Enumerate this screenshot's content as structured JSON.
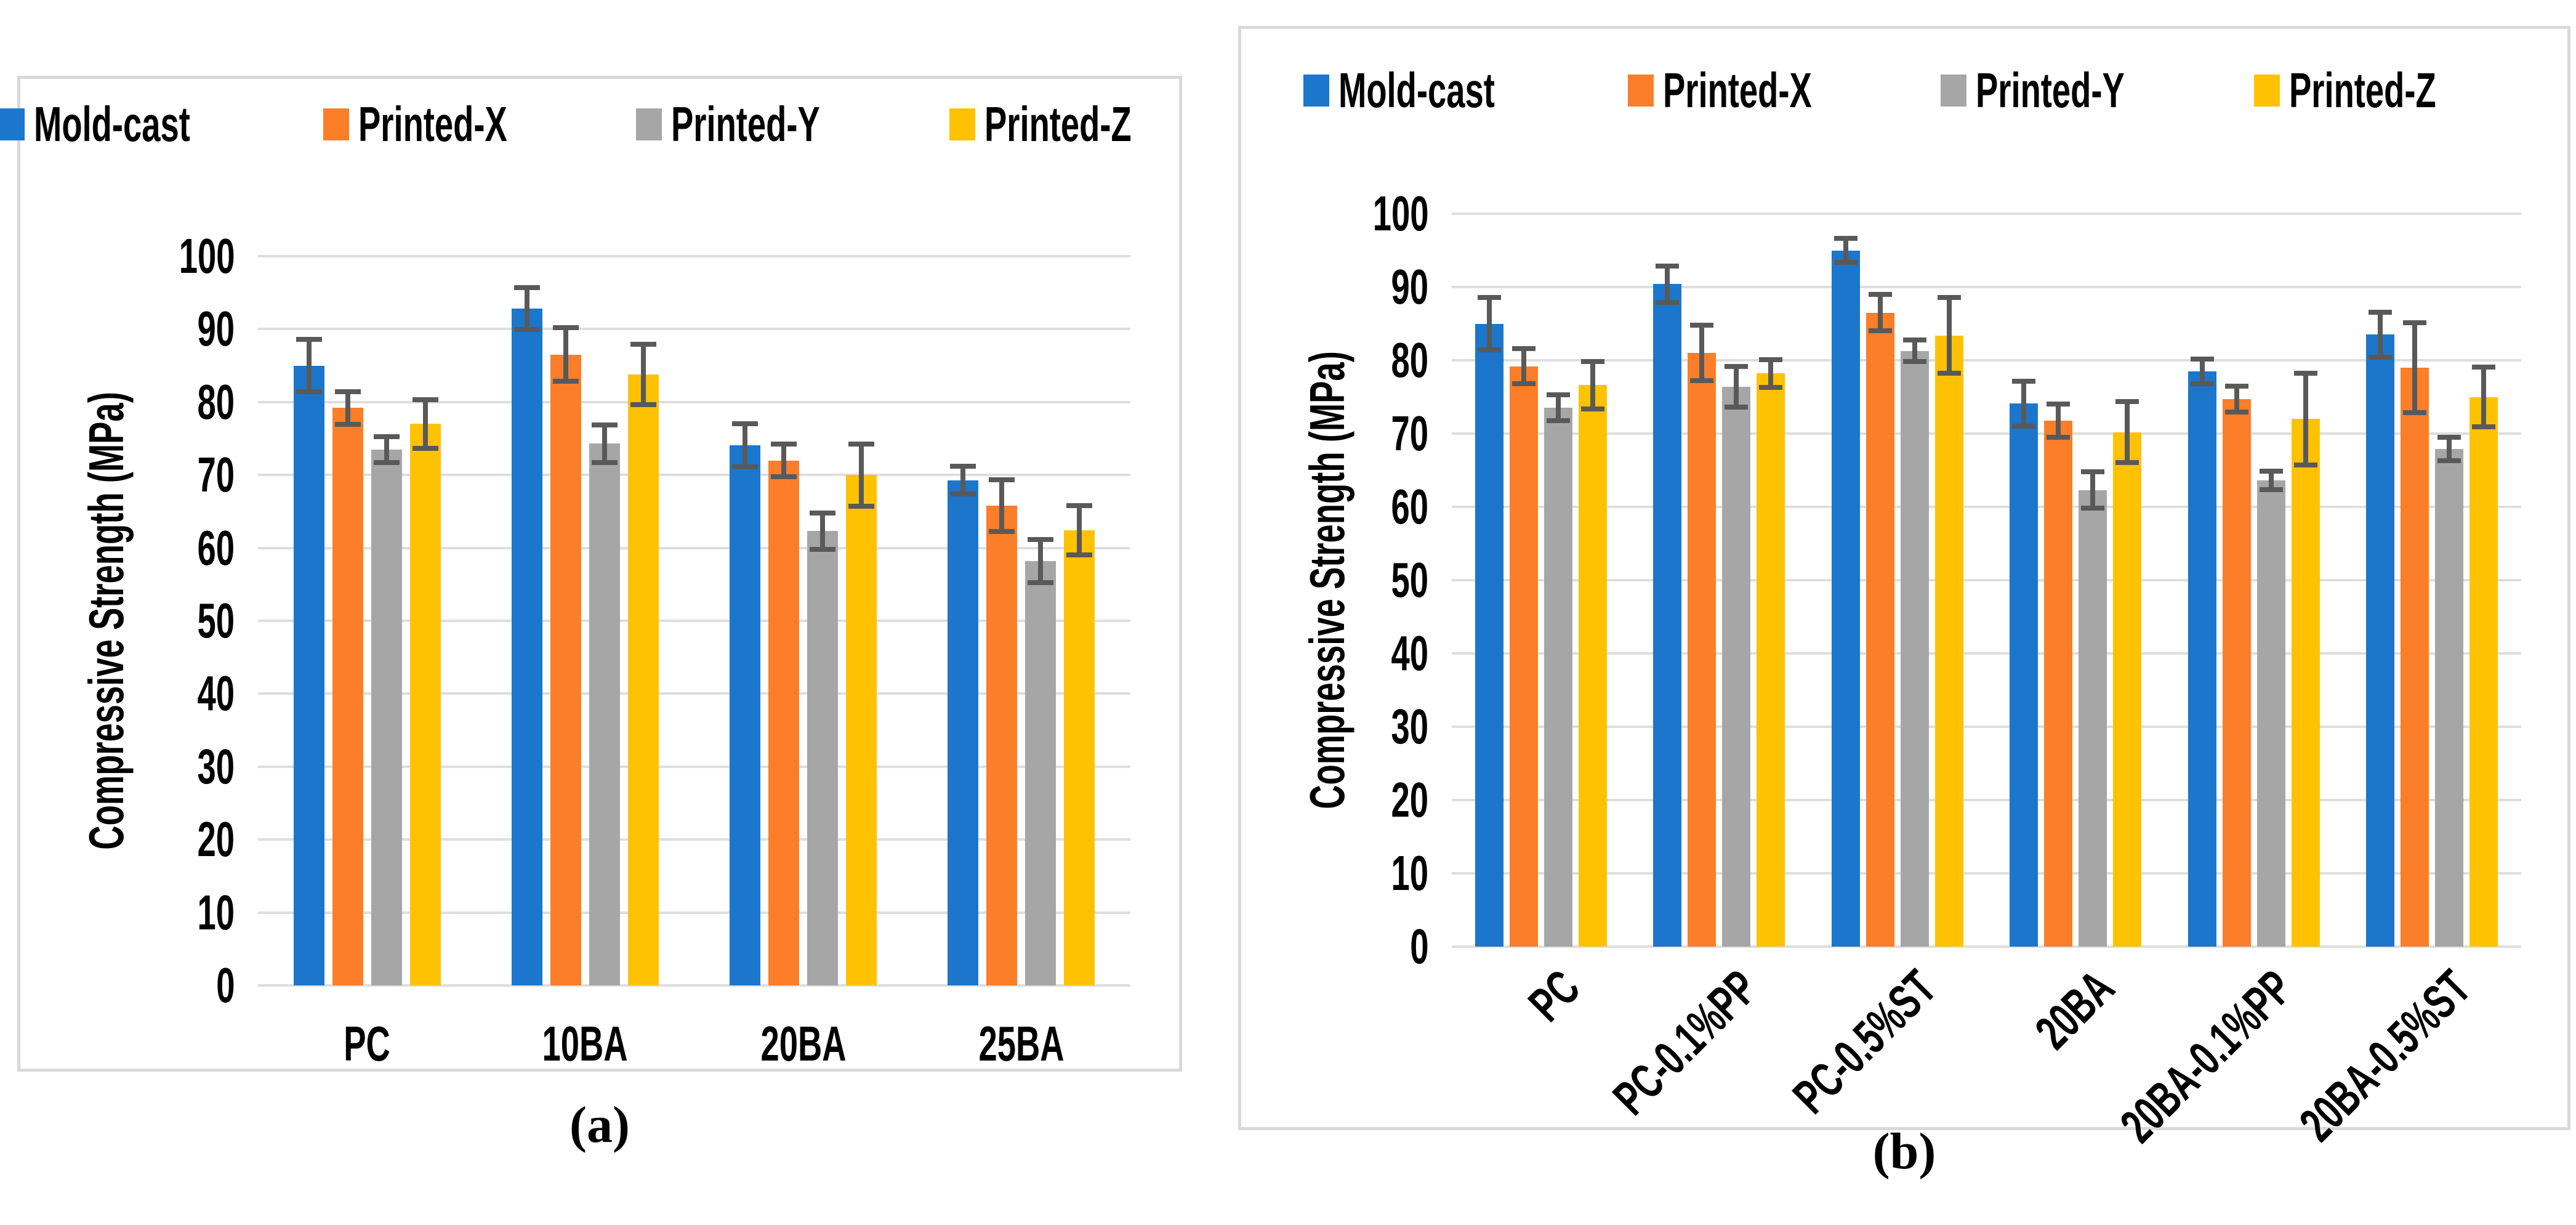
{
  "captions": {
    "a": "(a)",
    "b": "(b)"
  },
  "colors": {
    "background": "#FFFFFF",
    "panel_border": "#D9D9D9",
    "gridline": "#DEDEDE",
    "error_bar": "#595959",
    "series_blue": "#1B76CC",
    "series_orange": "#FC7E28",
    "series_gray": "#A6A6A6",
    "series_yellow": "#FFC203"
  },
  "chart_data": [
    {
      "type": "bar",
      "title": "",
      "xlabel": "",
      "ylabel": "Compressive Strength (MPa)",
      "ylim": [
        0,
        100
      ],
      "ytick_step": 10,
      "grid": true,
      "legend_position": "top",
      "xtick_rotation": 0,
      "categories": [
        "PC",
        "10BA",
        "20BA",
        "25BA"
      ],
      "series": [
        {
          "name": "Mold-cast",
          "color": "#1B76CC",
          "values": [
            85.0,
            92.8,
            74.1,
            69.3
          ],
          "errors": [
            3.9,
            3.2,
            3.3,
            2.2
          ]
        },
        {
          "name": "Printed-X",
          "color": "#FC7E28",
          "values": [
            79.2,
            86.5,
            72.0,
            65.8
          ],
          "errors": [
            2.6,
            4.0,
            2.6,
            3.9
          ]
        },
        {
          "name": "Printed-Y",
          "color": "#A6A6A6",
          "values": [
            73.5,
            74.3,
            62.3,
            58.2
          ],
          "errors": [
            2.1,
            2.9,
            2.8,
            3.3
          ]
        },
        {
          "name": "Printed-Z",
          "color": "#FFC203",
          "values": [
            77.0,
            83.8,
            70.0,
            62.4
          ],
          "errors": [
            3.7,
            4.5,
            4.6,
            3.7
          ]
        }
      ]
    },
    {
      "type": "bar",
      "title": "",
      "xlabel": "",
      "ylabel": "Compressive Strength (MPa)",
      "ylim": [
        0,
        100
      ],
      "ytick_step": 10,
      "grid": true,
      "legend_position": "top",
      "xtick_rotation": -45,
      "categories": [
        "PC",
        "PC-0.1%PP",
        "PC-0.5%ST",
        "20BA",
        "20BA-0.1%PP",
        "20BA-0.5%ST"
      ],
      "series": [
        {
          "name": "Mold-cast",
          "color": "#1B76CC",
          "values": [
            85.0,
            90.4,
            95.0,
            74.1,
            78.5,
            83.5
          ],
          "errors": [
            3.9,
            2.8,
            2.0,
            3.4,
            2.0,
            3.4
          ]
        },
        {
          "name": "Printed-X",
          "color": "#FC7E28",
          "values": [
            79.2,
            81.0,
            86.5,
            71.8,
            74.7,
            79.0
          ],
          "errors": [
            2.7,
            4.1,
            2.8,
            2.6,
            2.1,
            6.5
          ]
        },
        {
          "name": "Printed-Y",
          "color": "#A6A6A6",
          "values": [
            73.5,
            76.4,
            81.3,
            62.3,
            63.6,
            67.9
          ],
          "errors": [
            2.1,
            3.1,
            1.8,
            2.8,
            1.6,
            1.9
          ]
        },
        {
          "name": "Printed-Z",
          "color": "#FFC203",
          "values": [
            76.6,
            78.2,
            83.4,
            70.2,
            72.0,
            75.0
          ],
          "errors": [
            3.6,
            2.2,
            5.5,
            4.5,
            6.6,
            4.4
          ]
        }
      ]
    }
  ]
}
